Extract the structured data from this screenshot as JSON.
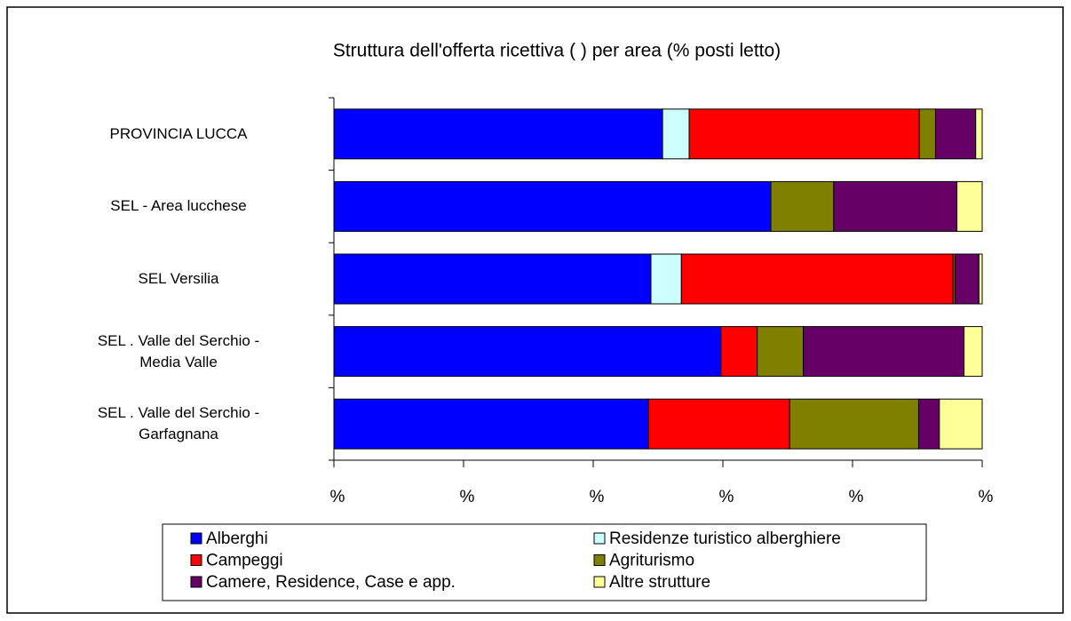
{
  "chart_data": {
    "type": "stacked_barh",
    "title": "Struttura dell'offerta ricettiva (      ) per area (% posti letto)",
    "categories": [
      "PROVINCIA LUCCA",
      "SEL    - Area lucchese",
      "SEL    Versilia",
      "SEL   .   Valle del Serchio -\nMedia Valle",
      "SEL   .   Valle del Serchio -\nGarfagnana"
    ],
    "series": [
      {
        "name": "Alberghi",
        "color": "#0000ff",
        "values": [
          50.7,
          67.4,
          48.9,
          59.7,
          48.5
        ]
      },
      {
        "name": "Residenze turistico alberghiere",
        "color": "#ccffff",
        "values": [
          4.1,
          0,
          4.7,
          0,
          0
        ]
      },
      {
        "name": "Campeggi",
        "color": "#ff0000",
        "values": [
          35.5,
          0,
          41.9,
          5.6,
          21.8
        ]
      },
      {
        "name": "Agriturismo",
        "color": "#808000",
        "values": [
          2.5,
          9.7,
          0.3,
          7.1,
          19.9
        ]
      },
      {
        "name": "Camere, Residence, Case e app.",
        "color": "#660066",
        "values": [
          6.2,
          19.0,
          3.7,
          24.8,
          3.2
        ]
      },
      {
        "name": "Altre strutture",
        "color": "#ffff99",
        "values": [
          1.0,
          3.9,
          0.5,
          2.8,
          6.6
        ]
      }
    ],
    "xlim": [
      0,
      100
    ],
    "xticks": [
      {
        "value": 0,
        "label": "%"
      },
      {
        "value": 20,
        "label": "%"
      },
      {
        "value": 40,
        "label": "%"
      },
      {
        "value": 60,
        "label": "%"
      },
      {
        "value": 80,
        "label": "%"
      },
      {
        "value": 100,
        "label": "%"
      }
    ],
    "legend": "bottom"
  }
}
